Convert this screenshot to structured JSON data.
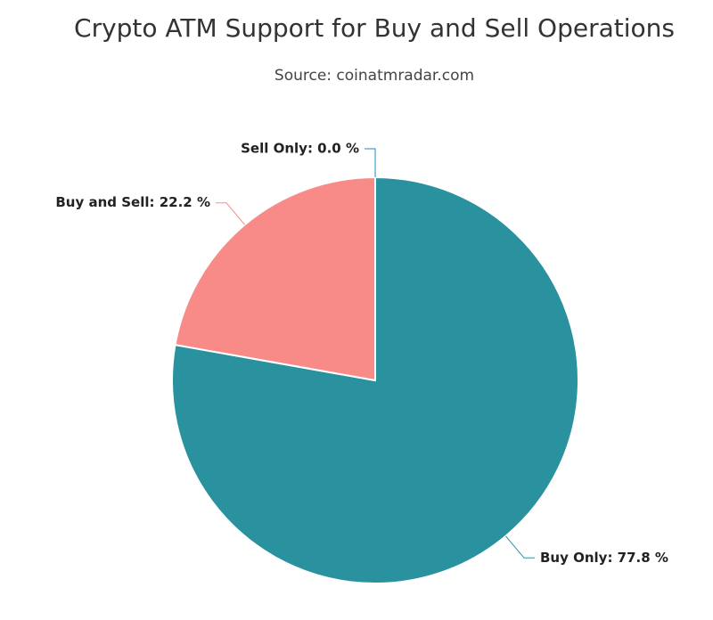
{
  "chart_data": {
    "type": "pie",
    "title": "Crypto ATM Support for Buy and Sell Operations",
    "subtitle": "Source: coinatmradar.com",
    "values": [
      77.8,
      22.2,
      0.0
    ],
    "value_labels": [
      "Buy Only: 77.8 %",
      "Buy and Sell: 22.2 %",
      "Sell Only: 0.0 %"
    ],
    "colors": [
      "#2a919f",
      "#f88a87",
      "#1f8dbf"
    ]
  }
}
